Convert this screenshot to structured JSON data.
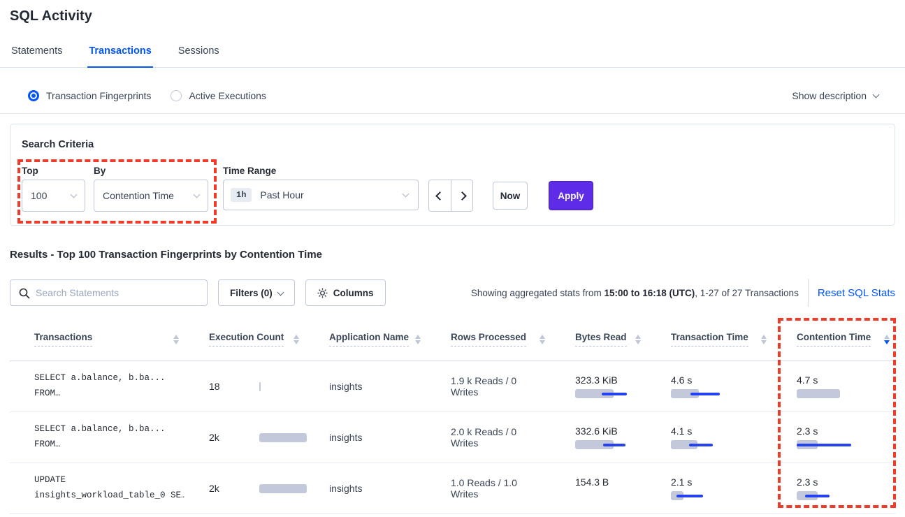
{
  "page": {
    "title": "SQL Activity"
  },
  "tabs": [
    {
      "label": "Statements"
    },
    {
      "label": "Transactions"
    },
    {
      "label": "Sessions"
    }
  ],
  "view_toggle": {
    "options": [
      {
        "label": "Transaction Fingerprints",
        "selected": true
      },
      {
        "label": "Active Executions",
        "selected": false
      }
    ],
    "show_description_label": "Show description"
  },
  "search_criteria": {
    "title": "Search Criteria",
    "top": {
      "label": "Top",
      "value": "100"
    },
    "by": {
      "label": "By",
      "value": "Contention Time"
    },
    "time_range": {
      "label": "Time Range",
      "badge": "1h",
      "value": "Past Hour"
    },
    "now_label": "Now",
    "apply_label": "Apply"
  },
  "results": {
    "heading": "Results - Top 100 Transaction Fingerprints by Contention Time",
    "search_placeholder": "Search Statements",
    "filters_label": "Filters (0)",
    "columns_label": "Columns",
    "stats_prefix": "Showing aggregated stats from ",
    "stats_bold": "15:00 to 16:18 (UTC)",
    "stats_suffix": ", 1-27 of 27 Transactions",
    "reset_label": "Reset SQL Stats"
  },
  "table": {
    "columns": [
      "Transactions",
      "Execution Count",
      "Application Name",
      "Rows Processed",
      "Bytes Read",
      "Transaction Time",
      "Contention Time"
    ],
    "sort": {
      "column": "Contention Time",
      "direction": "desc"
    },
    "rows": [
      {
        "query_line1": "SELECT a.balance, b.ba...",
        "query_line2": "FROM…",
        "execution_count": "18",
        "application_name": "insights",
        "rows_processed": "1.9 k Reads / 0 Writes",
        "bytes_read": "323.3 KiB",
        "transaction_time": "4.6 s",
        "contention_time": "4.7 s",
        "bars": {
          "execution": {
            "gray": 2
          },
          "bytes": {
            "gray": 55,
            "blue": [
              38,
              74
            ]
          },
          "transaction": {
            "gray": 40,
            "blue": [
              28,
              70
            ]
          },
          "contention": {
            "gray": 62
          }
        }
      },
      {
        "query_line1": "SELECT a.balance, b.ba...",
        "query_line2": "FROM…",
        "execution_count": "2k",
        "application_name": "insights",
        "rows_processed": "2.0 k Reads / 0 Writes",
        "bytes_read": "332.6 KiB",
        "transaction_time": "4.1 s",
        "contention_time": "2.3 s",
        "bars": {
          "execution": {
            "gray": 68
          },
          "bytes": {
            "gray": 55,
            "blue": [
              40,
              72
            ]
          },
          "transaction": {
            "gray": 38,
            "blue": [
              26,
              60
            ]
          },
          "contention": {
            "gray": 30,
            "blue": [
              0,
              78
            ]
          }
        }
      },
      {
        "query_line1": "UPDATE",
        "query_line2": "insights_workload_table_0 SE…",
        "execution_count": "2k",
        "application_name": "insights",
        "rows_processed": "1.0 Reads / 1.0 Writes",
        "bytes_read": "154.3 B",
        "transaction_time": "2.1 s",
        "contention_time": "2.3 s",
        "bars": {
          "execution": {
            "gray": 68
          },
          "bytes": null,
          "transaction": {
            "gray": 18,
            "blue": [
              8,
              46
            ]
          },
          "contention": {
            "gray": 30,
            "blue": [
              12,
              47
            ]
          }
        }
      }
    ]
  },
  "colors": {
    "accent_blue": "#0055ff",
    "apply_purple": "#5e2ce6",
    "annotation_red": "#ee3b2a",
    "bar_gray": "#c3c9da",
    "bar_blue": "#2443ef"
  }
}
